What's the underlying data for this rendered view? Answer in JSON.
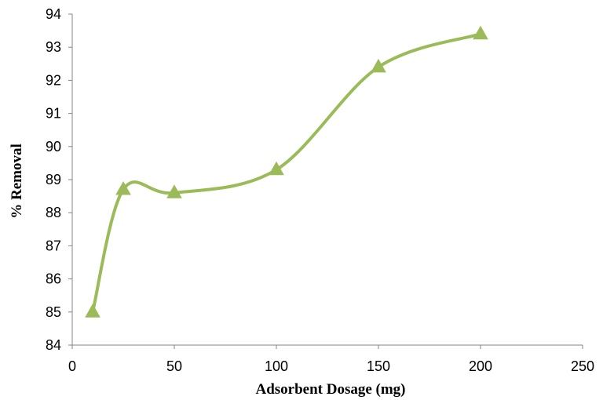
{
  "chart_data": {
    "type": "line",
    "title": "",
    "xlabel": "Adsorbent Dosage (mg)",
    "ylabel": "% Removal",
    "xlim": [
      0,
      250
    ],
    "ylim": [
      84,
      94
    ],
    "xticks": [
      0,
      50,
      100,
      150,
      200,
      250
    ],
    "yticks": [
      84,
      85,
      86,
      87,
      88,
      89,
      90,
      91,
      92,
      93,
      94
    ],
    "grid": false,
    "legend": "none",
    "line_style": "smoothed",
    "marker": "triangle",
    "series": [
      {
        "color": "#9bbb59",
        "x": [
          10,
          25,
          50,
          100,
          150,
          200
        ],
        "y": [
          85.0,
          88.7,
          88.6,
          89.3,
          92.4,
          93.4
        ]
      }
    ]
  }
}
